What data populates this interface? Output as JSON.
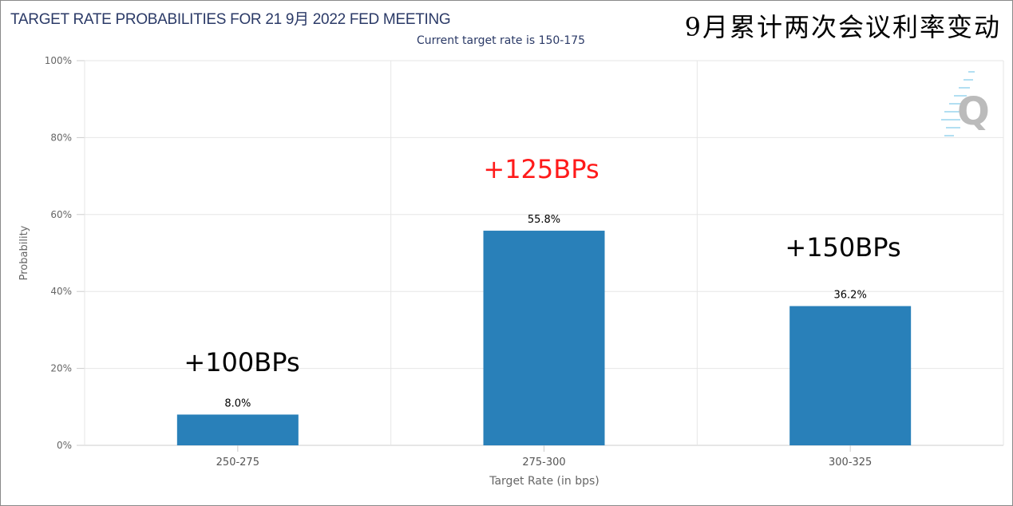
{
  "chart_data": {
    "type": "bar",
    "title": "TARGET RATE PROBABILITIES FOR 21 9月 2022 FED MEETING",
    "subtitle": "Current target rate is 150-175",
    "overlay_title": "9月累计两次会议利率变动",
    "xlabel": "Target Rate (in bps)",
    "ylabel": "Probability",
    "categories": [
      "250-275",
      "275-300",
      "300-325"
    ],
    "values": [
      8.0,
      55.8,
      36.2
    ],
    "data_labels": [
      "8.0%",
      "55.8%",
      "36.2%"
    ],
    "annotations": [
      {
        "text": "+100BPs",
        "color": "#000000"
      },
      {
        "text": "+125BPs",
        "color": "#ff1a1a"
      },
      {
        "text": "+150BPs",
        "color": "#000000"
      }
    ],
    "ylim": [
      0,
      100
    ],
    "yticks": [
      "0%",
      "20%",
      "40%",
      "60%",
      "80%",
      "100%"
    ],
    "grid": true,
    "bar_color": "#2980b9",
    "watermark": "Q"
  }
}
